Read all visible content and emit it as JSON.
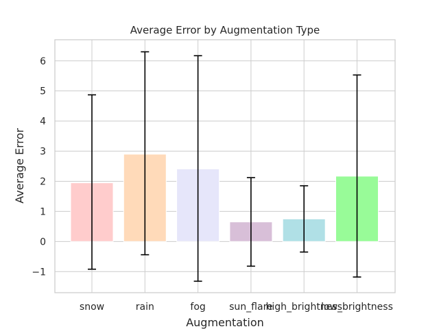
{
  "chart_data": {
    "type": "bar",
    "title": "Average Error by Augmentation Type",
    "xlabel": "Augmentation",
    "ylabel": "Average Error",
    "categories": [
      "snow",
      "rain",
      "fog",
      "sun_flare",
      "high_brightness",
      "low_brightness"
    ],
    "values": [
      1.95,
      2.9,
      2.41,
      0.65,
      0.75,
      2.17
    ],
    "error_low": [
      -0.92,
      -0.44,
      -1.32,
      -0.82,
      -0.35,
      -1.18
    ],
    "error_high": [
      4.87,
      6.3,
      6.17,
      2.12,
      1.85,
      5.53
    ],
    "colors": [
      "#ffcccc",
      "#ffdab9",
      "#e6e6fa",
      "#d8bfd8",
      "#b0e0e6",
      "#98fb98"
    ],
    "yticks": [
      -1,
      0,
      1,
      2,
      3,
      4,
      5,
      6
    ],
    "ytick_labels": [
      "−1",
      "0",
      "1",
      "2",
      "3",
      "4",
      "5",
      "6"
    ],
    "ylim": [
      -1.7,
      6.7
    ],
    "grid": true,
    "legend": "none"
  }
}
